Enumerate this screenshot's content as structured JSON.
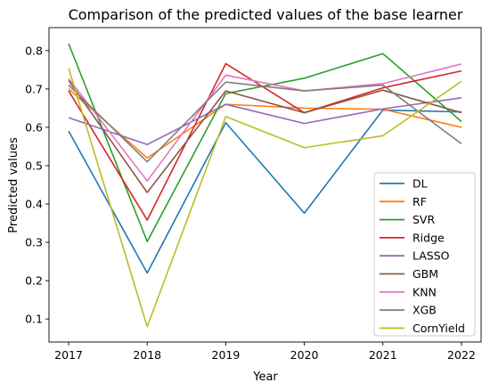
{
  "chart_data": {
    "type": "line",
    "title": "Comparison of the predicted values of the base learner",
    "xlabel": "Year",
    "ylabel": "Predicted values",
    "x": [
      2017,
      2018,
      2019,
      2020,
      2021,
      2022
    ],
    "xticks": [
      "2017",
      "2018",
      "2019",
      "2020",
      "2021",
      "2022"
    ],
    "yticks": [
      "0.1",
      "0.2",
      "0.3",
      "0.4",
      "0.5",
      "0.6",
      "0.7",
      "0.8"
    ],
    "ylim": [
      0.04,
      0.86
    ],
    "xlim": [
      2016.75,
      2022.25
    ],
    "grid": false,
    "legend_position": "bottom-right",
    "series": [
      {
        "name": "DL",
        "color": "#1f77b4",
        "values": [
          0.59,
          0.22,
          0.612,
          0.376,
          0.645,
          0.64
        ]
      },
      {
        "name": "RF",
        "color": "#ff7f0e",
        "values": [
          0.7,
          0.52,
          0.66,
          0.65,
          0.647,
          0.6
        ]
      },
      {
        "name": "SVR",
        "color": "#2ca02c",
        "values": [
          0.818,
          0.302,
          0.688,
          0.728,
          0.792,
          0.615
        ]
      },
      {
        "name": "Ridge",
        "color": "#d62728",
        "values": [
          0.695,
          0.358,
          0.766,
          0.638,
          0.703,
          0.747
        ]
      },
      {
        "name": "LASSO",
        "color": "#9467bd",
        "values": [
          0.625,
          0.555,
          0.66,
          0.61,
          0.648,
          0.677
        ]
      },
      {
        "name": "GBM",
        "color": "#8c564b",
        "values": [
          0.722,
          0.43,
          0.695,
          0.638,
          0.697,
          0.638
        ]
      },
      {
        "name": "KNN",
        "color": "#e377c2",
        "values": [
          0.727,
          0.46,
          0.736,
          0.695,
          0.714,
          0.765
        ]
      },
      {
        "name": "XGB",
        "color": "#7f7f7f",
        "values": [
          0.71,
          0.51,
          0.718,
          0.695,
          0.71,
          0.557
        ]
      },
      {
        "name": "CornYield",
        "color": "#bcbd22",
        "values": [
          0.754,
          0.08,
          0.628,
          0.547,
          0.578,
          0.72
        ]
      }
    ]
  }
}
